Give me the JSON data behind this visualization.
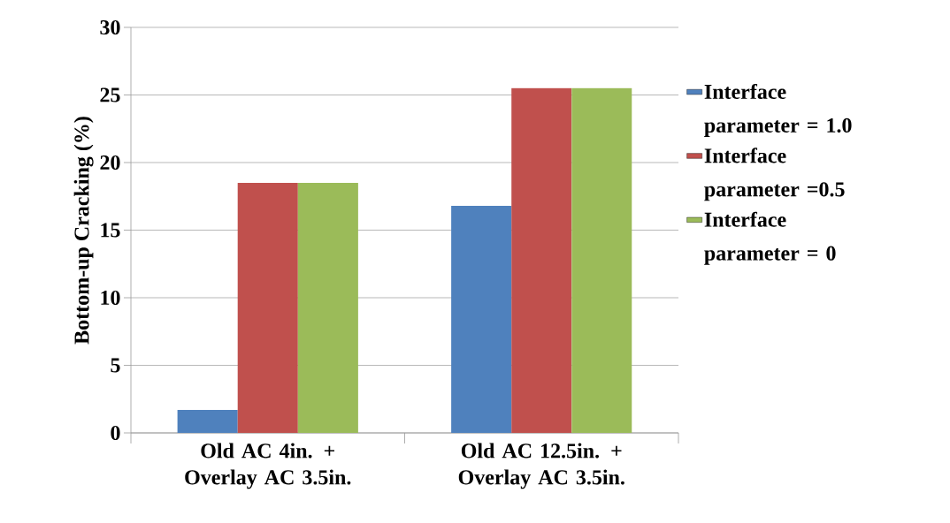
{
  "chart_data": {
    "type": "bar",
    "ylabel": "Bottom-up Cracking (%)",
    "categories": [
      "Old AC 4in. + Overlay AC 3.5in.",
      "Old AC 12.5in. + Overlay AC 3.5in."
    ],
    "series": [
      {
        "name": "Interface parameter = 1.0",
        "color": "#4f81bd",
        "values": [
          1.7,
          16.8
        ]
      },
      {
        "name": "Interface parameter =0.5",
        "color": "#c0504d",
        "values": [
          18.5,
          25.5
        ]
      },
      {
        "name": "Interface parameter = 0",
        "color": "#9bbb59",
        "values": [
          18.5,
          25.5
        ]
      }
    ],
    "ylim": [
      0,
      30
    ],
    "yticks": [
      0,
      5,
      10,
      15,
      20,
      25,
      30
    ],
    "grid": "y",
    "legend": "right"
  }
}
